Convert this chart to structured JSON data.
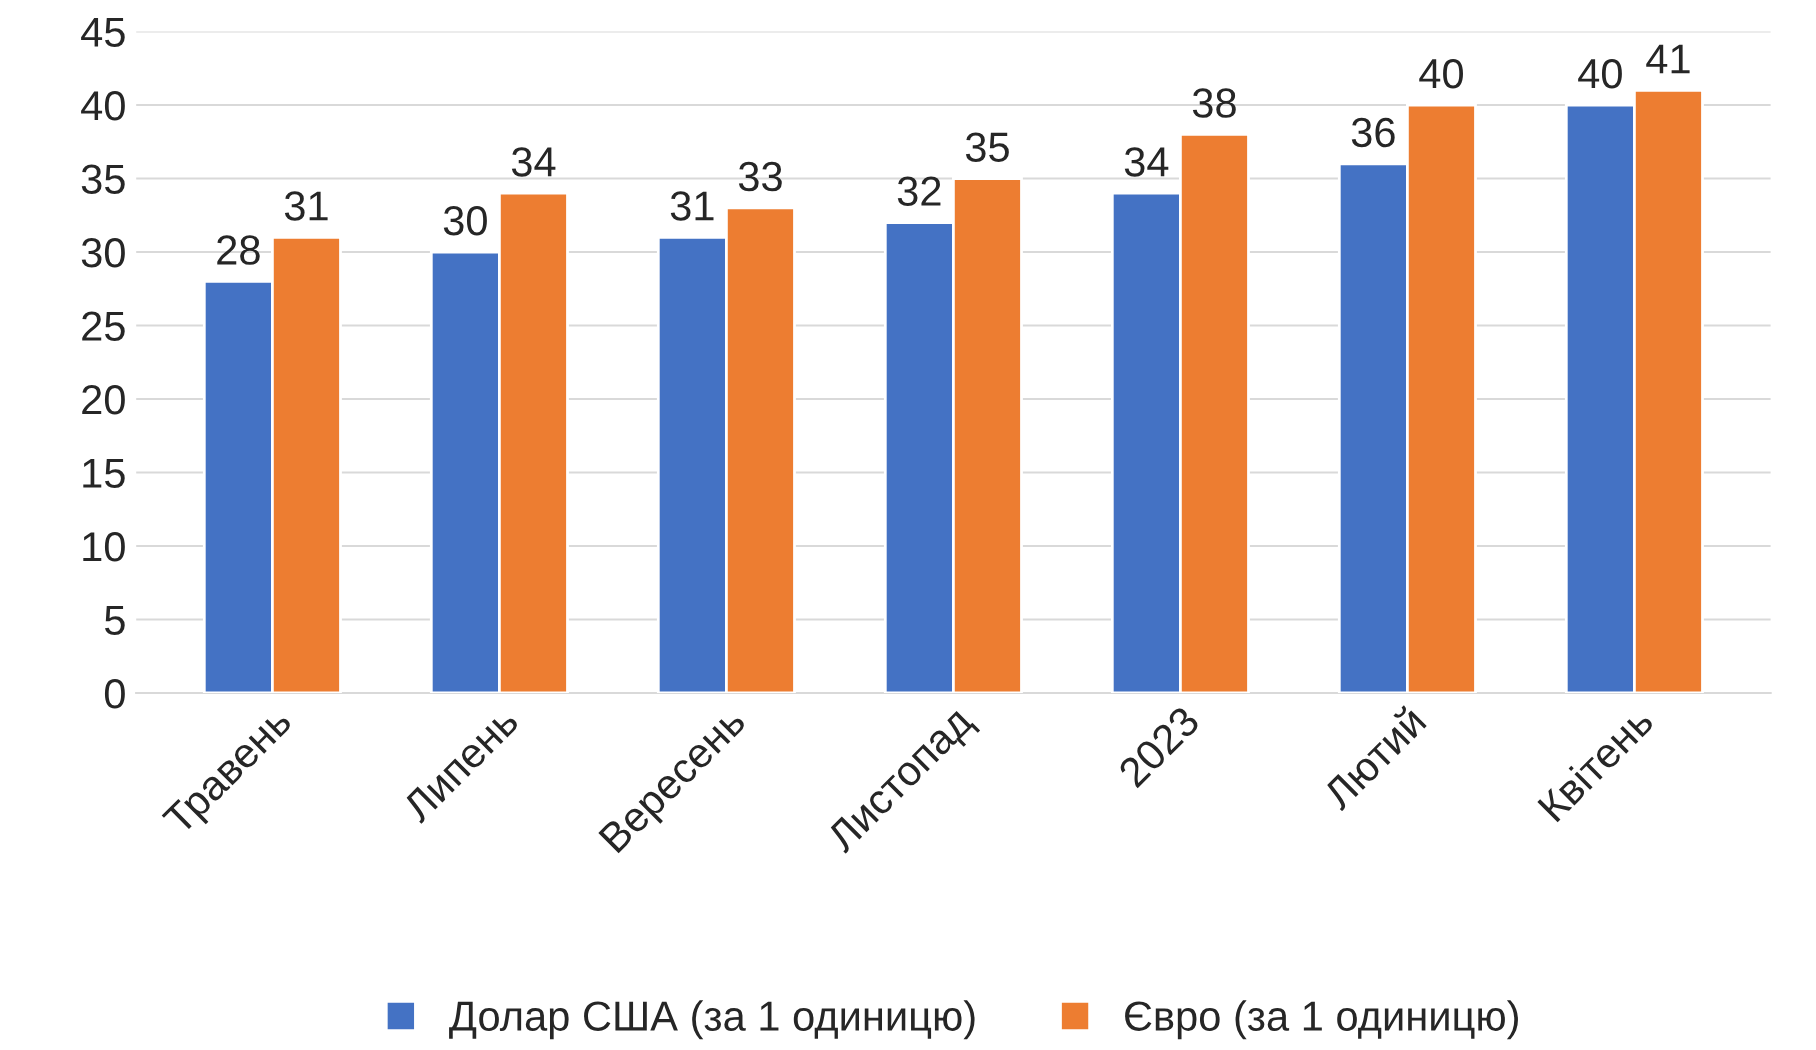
{
  "chart_data": {
    "type": "bar",
    "categories": [
      "Травень",
      "Липень",
      "Вересень",
      "Листопад",
      "2023",
      "Лютий",
      "Квітень"
    ],
    "series": [
      {
        "name": "Долар США (за 1 одиницю)",
        "color": "#4472c4",
        "values": [
          28,
          30,
          31,
          32,
          34,
          36,
          40
        ]
      },
      {
        "name": "Євро (за 1 одиницю)",
        "color": "#ed7d31",
        "values": [
          31,
          34,
          33,
          35,
          38,
          40,
          41
        ]
      }
    ],
    "ylim": [
      0,
      45
    ],
    "yticks": [
      0,
      5,
      10,
      15,
      20,
      25,
      30,
      35,
      40,
      45
    ],
    "grid": "y",
    "legend": "bottom",
    "data_labels": true
  }
}
